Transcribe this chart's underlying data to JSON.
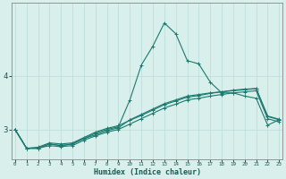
{
  "title": "",
  "xlabel": "Humidex (Indice chaleur)",
  "ylabel": "",
  "bg_color": "#d8efec",
  "line_color": "#1a7a6e",
  "grid_color": "#b8ddd8",
  "axis_color": "#888888",
  "x_ticks": [
    0,
    1,
    2,
    3,
    4,
    5,
    6,
    7,
    8,
    9,
    10,
    11,
    12,
    13,
    14,
    15,
    16,
    17,
    18,
    19,
    20,
    21,
    22,
    23
  ],
  "y_ticks": [
    3,
    4
  ],
  "ylim": [
    2.45,
    5.35
  ],
  "xlim": [
    -0.3,
    23.3
  ],
  "series": {
    "line1": [
      3.0,
      2.65,
      2.65,
      2.73,
      2.7,
      2.73,
      2.83,
      2.93,
      3.0,
      3.05,
      3.55,
      4.2,
      4.55,
      4.98,
      4.78,
      4.28,
      4.22,
      3.88,
      3.68,
      3.68,
      3.62,
      3.58,
      3.08,
      3.18
    ],
    "line2": [
      3.0,
      2.65,
      2.65,
      2.73,
      2.7,
      2.73,
      2.83,
      2.9,
      2.98,
      3.03,
      3.18,
      3.28,
      3.38,
      3.48,
      3.55,
      3.62,
      3.65,
      3.68,
      3.7,
      3.73,
      3.75,
      3.76,
      3.24,
      3.18
    ],
    "line3": [
      3.0,
      2.65,
      2.67,
      2.75,
      2.73,
      2.75,
      2.85,
      2.95,
      3.02,
      3.07,
      3.17,
      3.26,
      3.36,
      3.46,
      3.53,
      3.6,
      3.63,
      3.67,
      3.7,
      3.72,
      3.74,
      3.76,
      3.25,
      3.19
    ],
    "line4": [
      3.0,
      2.65,
      2.65,
      2.7,
      2.68,
      2.7,
      2.8,
      2.88,
      2.95,
      3.0,
      3.1,
      3.2,
      3.3,
      3.4,
      3.47,
      3.55,
      3.58,
      3.62,
      3.65,
      3.68,
      3.7,
      3.72,
      3.2,
      3.14
    ]
  }
}
